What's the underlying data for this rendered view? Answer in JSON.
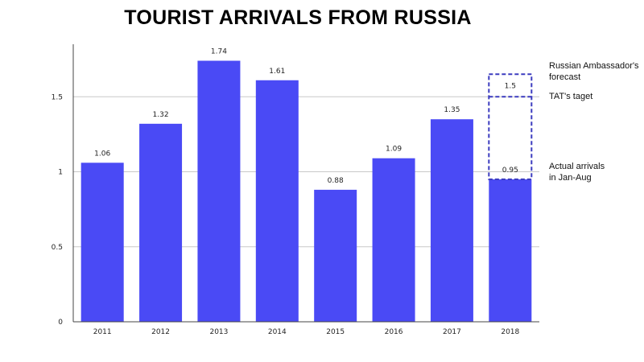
{
  "chart_data": {
    "type": "bar",
    "title": "TOURIST ARRIVALS FROM RUSSIA",
    "categories": [
      "2011",
      "2012",
      "2013",
      "2014",
      "2015",
      "2016",
      "2017",
      "2018"
    ],
    "values": [
      1.06,
      1.32,
      1.74,
      1.61,
      0.88,
      1.09,
      1.35,
      0.95
    ],
    "value_labels": [
      "1.06",
      "1.32",
      "1.74",
      "1.61",
      "0.88",
      "1.09",
      "1.35",
      "0.95"
    ],
    "ylim": [
      0,
      1.85
    ],
    "yticks": [
      0,
      0.5,
      1,
      1.5
    ],
    "ytick_labels": [
      "0",
      "0.5",
      "1",
      "1.5"
    ],
    "grid": true,
    "bar_color": "#4a4af5",
    "forecast": {
      "category": "2018",
      "value": 1.65,
      "target_value": 1.5,
      "target_label": "1.5",
      "color": "#3b3bbf"
    },
    "annotations": {
      "forecast": [
        "Russian Ambassador's",
        "forecast"
      ],
      "target": [
        "TAT's taget"
      ],
      "actual": [
        "Actual arrivals",
        "in Jan-Aug"
      ]
    }
  }
}
